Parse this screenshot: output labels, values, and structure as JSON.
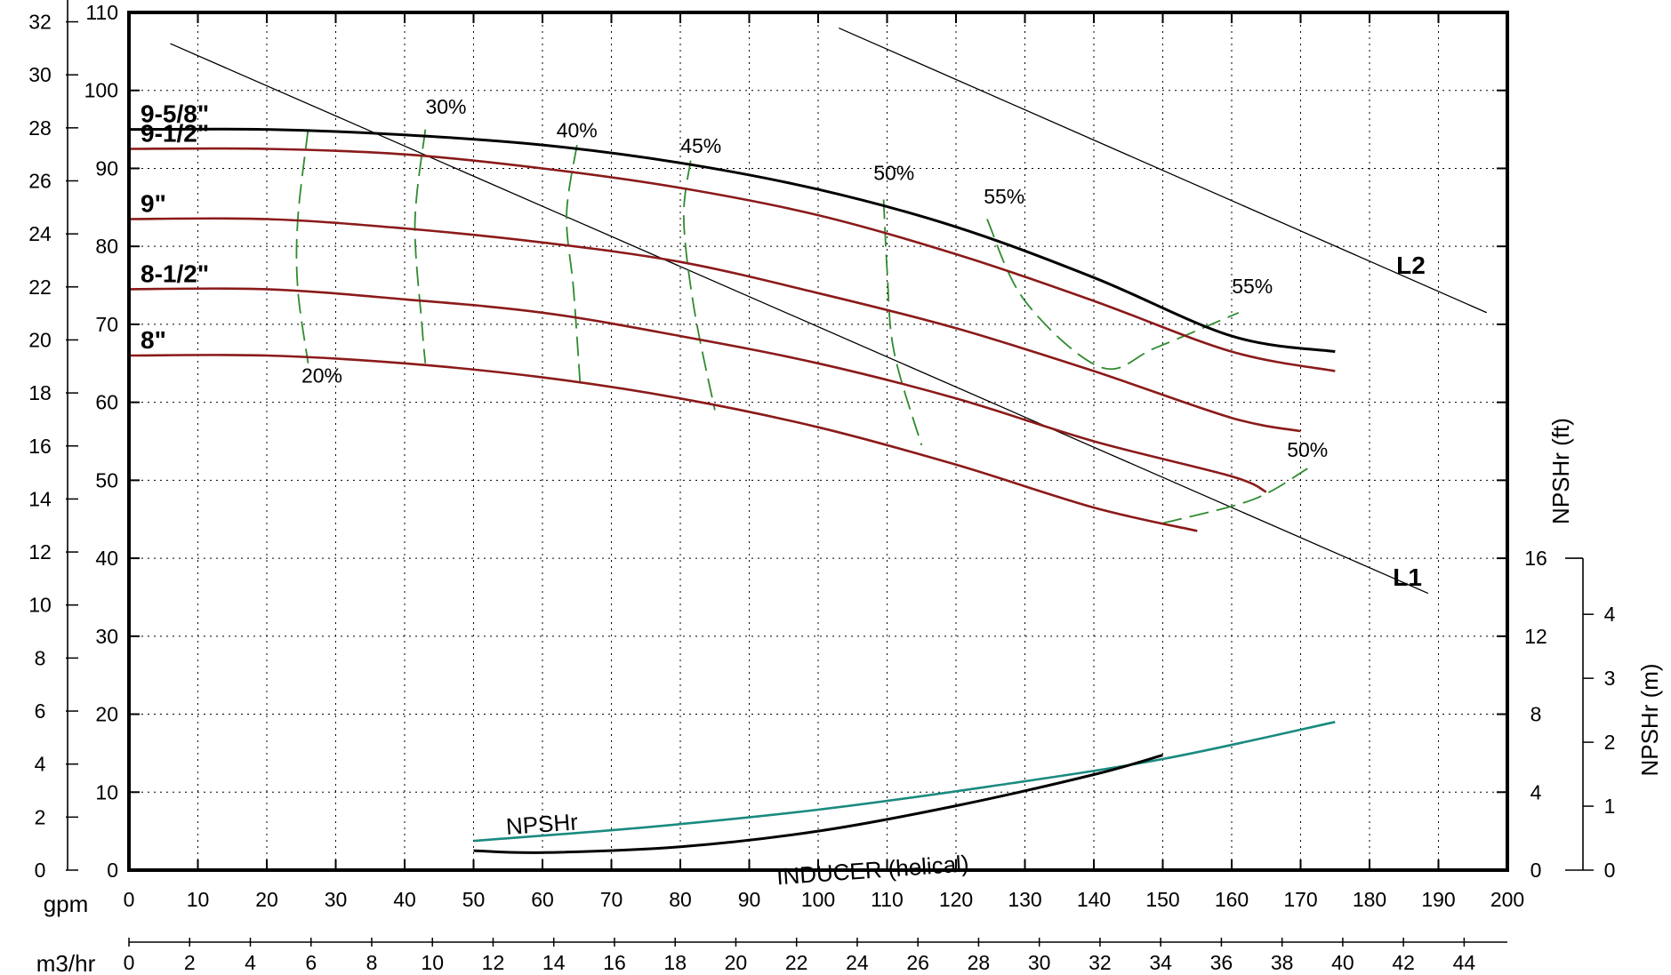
{
  "chart_data": {
    "type": "line",
    "title": "",
    "xlabel": "gpm",
    "x2label": "m3/hr",
    "ylabel": "",
    "x_range": [
      0,
      200
    ],
    "x_ticks": [
      0,
      10,
      20,
      30,
      40,
      50,
      60,
      70,
      80,
      90,
      100,
      110,
      120,
      130,
      140,
      150,
      160,
      170,
      180,
      190,
      200
    ],
    "x2_ticks": [
      0,
      2,
      4,
      6,
      8,
      10,
      12,
      14,
      16,
      18,
      20,
      22,
      24,
      26,
      28,
      30,
      32,
      34,
      36,
      38,
      40,
      42,
      44
    ],
    "y_range": [
      0,
      110
    ],
    "y_ticks": [
      0,
      10,
      20,
      30,
      40,
      50,
      60,
      70,
      80,
      90,
      100,
      110
    ],
    "y_left_ticks": [
      0,
      2,
      4,
      6,
      8,
      10,
      12,
      14,
      16,
      18,
      20,
      22,
      24,
      26,
      28,
      30,
      32
    ],
    "npsh_ft_label": "NPSHr (ft)",
    "npsh_ft_ticks": [
      0,
      4,
      8,
      12,
      16
    ],
    "npsh_m_label": "NPSHr (m)",
    "npsh_m_ticks": [
      0,
      1,
      2,
      3,
      4
    ],
    "grid": true,
    "colors": {
      "impeller_max": "#000000",
      "impeller": "#8b1a1a",
      "efficiency": "#2e8b2e",
      "npshr": "#1a8a80",
      "inducer": "#000000",
      "frame": "#000000"
    },
    "series": [
      {
        "name": "9-5/8\"",
        "role": "impeller_max",
        "x": [
          0,
          20,
          40,
          60,
          80,
          100,
          120,
          140,
          160,
          175
        ],
        "y": [
          95,
          95,
          94.3,
          93,
          90.7,
          87.3,
          82.5,
          76,
          68.5,
          66.5
        ]
      },
      {
        "name": "9-1/2\"",
        "role": "impeller",
        "x": [
          0,
          20,
          40,
          60,
          80,
          100,
          120,
          140,
          160,
          175
        ],
        "y": [
          92.5,
          92.5,
          91.8,
          90,
          87.5,
          84,
          79,
          73,
          66.5,
          64
        ]
      },
      {
        "name": "9\"",
        "role": "impeller",
        "x": [
          0,
          20,
          40,
          60,
          80,
          100,
          120,
          140,
          160,
          170
        ],
        "y": [
          83.5,
          83.5,
          82.3,
          80.5,
          78,
          74,
          69.5,
          64,
          58,
          56.3
        ]
      },
      {
        "name": "8-1/2\"",
        "role": "impeller",
        "x": [
          0,
          20,
          40,
          60,
          80,
          100,
          120,
          140,
          160,
          165
        ],
        "y": [
          74.5,
          74.5,
          73.2,
          71.5,
          68.5,
          65,
          60.5,
          55,
          50.5,
          48.5
        ]
      },
      {
        "name": "8\"",
        "role": "impeller",
        "x": [
          0,
          20,
          40,
          60,
          80,
          100,
          120,
          140,
          155
        ],
        "y": [
          66,
          66,
          65,
          63.2,
          60.5,
          56.8,
          52,
          46.5,
          43.5
        ]
      },
      {
        "name": "NPSHr",
        "role": "npshr",
        "x": [
          50,
          75,
          100,
          125,
          150,
          175
        ],
        "y": [
          1.5,
          2.2,
          3.1,
          4.3,
          5.7,
          7.6
        ]
      },
      {
        "name": "INDUCER (helical)",
        "role": "inducer",
        "x": [
          50,
          60,
          80,
          100,
          120,
          140,
          150
        ],
        "y": [
          1.0,
          0.9,
          1.2,
          2.0,
          3.3,
          4.9,
          5.9
        ]
      }
    ],
    "efficiency_curves": [
      {
        "label": "20%",
        "label_x": 28,
        "label_y": 62.5,
        "x": [
          26,
          24.5,
          24.5,
          26
        ],
        "y": [
          95,
          83.5,
          74.5,
          65
        ]
      },
      {
        "label": "30%",
        "label_x": 46,
        "label_y": 97,
        "x": [
          43,
          41.5,
          42.5,
          43
        ],
        "y": [
          95,
          83,
          70,
          65
        ]
      },
      {
        "label": "40%",
        "label_x": 65,
        "label_y": 94,
        "x": [
          65,
          63.5,
          64.5,
          65.5
        ],
        "y": [
          93,
          84,
          74.5,
          62
        ]
      },
      {
        "label": "45%",
        "label_x": 83,
        "label_y": 92,
        "x": [
          81.5,
          80.5,
          82,
          85
        ],
        "y": [
          91,
          83.5,
          72,
          59
        ]
      },
      {
        "label": "50%",
        "label_x": 111,
        "label_y": 88.5,
        "x": [
          109.5,
          110,
          111,
          115
        ],
        "y": [
          86,
          77,
          66.5,
          54.5
        ]
      },
      {
        "label": "55%",
        "label_x": 127,
        "label_y": 85.5,
        "x": [
          124.5,
          130,
          141,
          149,
          161
        ],
        "y": [
          83.5,
          73,
          64.5,
          67,
          71.5
        ]
      },
      {
        "label": "55%",
        "label_x": 163,
        "label_y": 74,
        "x": [
          161
        ],
        "y": [
          71.5
        ]
      },
      {
        "label": "50%",
        "label_x": 171,
        "label_y": 53,
        "x": [
          150,
          163,
          171
        ],
        "y": [
          44.5,
          47.5,
          51.5
        ]
      }
    ],
    "system_curves": [
      {
        "name": "L1",
        "x": [
          6,
          188.5
        ],
        "y": [
          106,
          35.5
        ]
      },
      {
        "name": "L2",
        "x": [
          103,
          197
        ],
        "y": [
          108,
          71.5
        ]
      }
    ],
    "curve_labels": {
      "L1": "L1",
      "L2": "L2",
      "npshr": "NPSHr",
      "inducer": "INDUCER (helical)"
    }
  }
}
